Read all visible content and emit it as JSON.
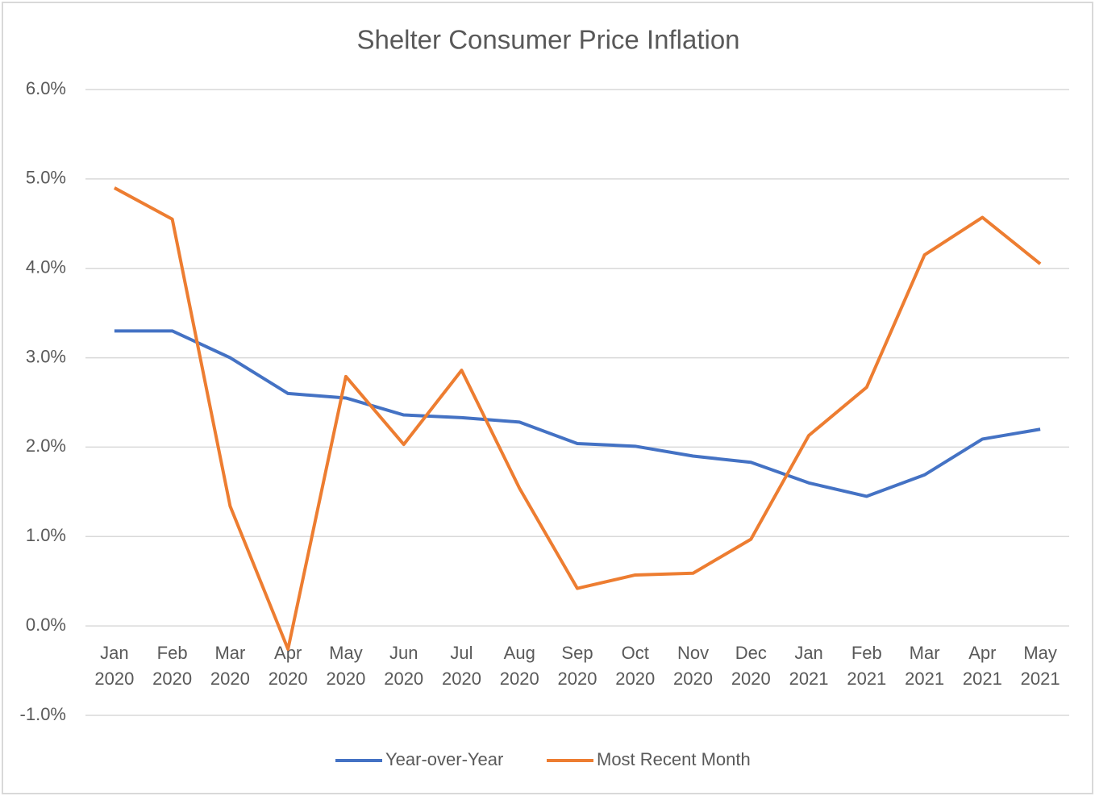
{
  "chart_data": {
    "type": "line",
    "title": "Shelter Consumer Price Inflation",
    "categories": [
      "Jan 2020",
      "Feb 2020",
      "Mar 2020",
      "Apr 2020",
      "May 2020",
      "Jun 2020",
      "Jul 2020",
      "Aug 2020",
      "Sep 2020",
      "Oct 2020",
      "Nov 2020",
      "Dec 2020",
      "Jan 2021",
      "Feb 2021",
      "Mar 2021",
      "Apr 2021",
      "May 2021"
    ],
    "series": [
      {
        "name": "Year-over-Year",
        "color": "#4472c4",
        "values": [
          3.3,
          3.3,
          3.0,
          2.6,
          2.55,
          2.36,
          2.33,
          2.28,
          2.04,
          2.01,
          1.9,
          1.83,
          1.6,
          1.45,
          1.69,
          2.09,
          2.2
        ]
      },
      {
        "name": "Most Recent Month",
        "color": "#ed7d31",
        "values": [
          4.9,
          4.55,
          1.34,
          -0.26,
          2.79,
          2.03,
          2.86,
          1.54,
          0.42,
          0.57,
          0.59,
          0.97,
          2.13,
          2.67,
          4.15,
          4.57,
          4.05
        ]
      }
    ],
    "ylim": [
      -1,
      6
    ],
    "yticks": [
      {
        "value": -1,
        "label": "-1.0%"
      },
      {
        "value": 0,
        "label": "0.0%"
      },
      {
        "value": 1,
        "label": "1.0%"
      },
      {
        "value": 2,
        "label": "2.0%"
      },
      {
        "value": 3,
        "label": "3.0%"
      },
      {
        "value": 4,
        "label": "4.0%"
      },
      {
        "value": 5,
        "label": "5.0%"
      },
      {
        "value": 6,
        "label": "6.0%"
      }
    ],
    "grid": true,
    "legend": "bottom"
  }
}
